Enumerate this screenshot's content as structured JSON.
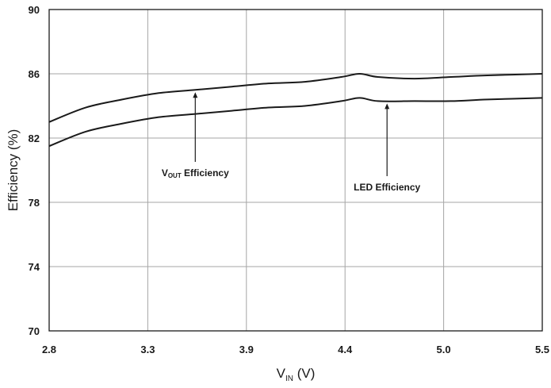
{
  "chart_data": {
    "type": "line",
    "x_tick_labels": [
      "2.8",
      "3.3",
      "3.9",
      "4.4",
      "5.0",
      "5.5"
    ],
    "y_tick_labels": [
      "70",
      "74",
      "78",
      "82",
      "86",
      "90"
    ],
    "xlim": [
      2.8,
      5.5
    ],
    "ylim": [
      70,
      90
    ],
    "grid": true,
    "xlabel": {
      "main": "V",
      "sub": "IN",
      "unit": " (V)"
    },
    "ylabel": "Efficiency (%)",
    "series": [
      {
        "name": "VOUT Efficiency",
        "x": [
          2.8,
          3.0,
          3.2,
          3.4,
          3.6,
          3.8,
          4.0,
          4.2,
          4.4,
          4.5,
          4.6,
          4.8,
          5.0,
          5.2,
          5.5
        ],
        "y": [
          83.0,
          83.9,
          84.4,
          84.8,
          85.0,
          85.2,
          85.4,
          85.5,
          85.8,
          86.0,
          85.8,
          85.7,
          85.8,
          85.9,
          86.0
        ]
      },
      {
        "name": "LED Efficiency",
        "x": [
          2.8,
          3.0,
          3.2,
          3.4,
          3.6,
          3.8,
          4.0,
          4.2,
          4.4,
          4.5,
          4.6,
          4.8,
          5.0,
          5.2,
          5.5
        ],
        "y": [
          81.5,
          82.4,
          82.9,
          83.3,
          83.5,
          83.7,
          83.9,
          84.0,
          84.3,
          84.5,
          84.3,
          84.3,
          84.3,
          84.4,
          84.5
        ]
      }
    ],
    "annotations": [
      {
        "main": "V",
        "sub": "OUT",
        "rest": " Efficiency",
        "series": 0,
        "x": 3.6
      },
      {
        "text": "LED Efficiency",
        "series": 1,
        "x": 4.65
      }
    ],
    "colors": {
      "line": "#1a1a1a",
      "grid": "#a6a6a6",
      "frame": "#1a1a1a"
    }
  }
}
